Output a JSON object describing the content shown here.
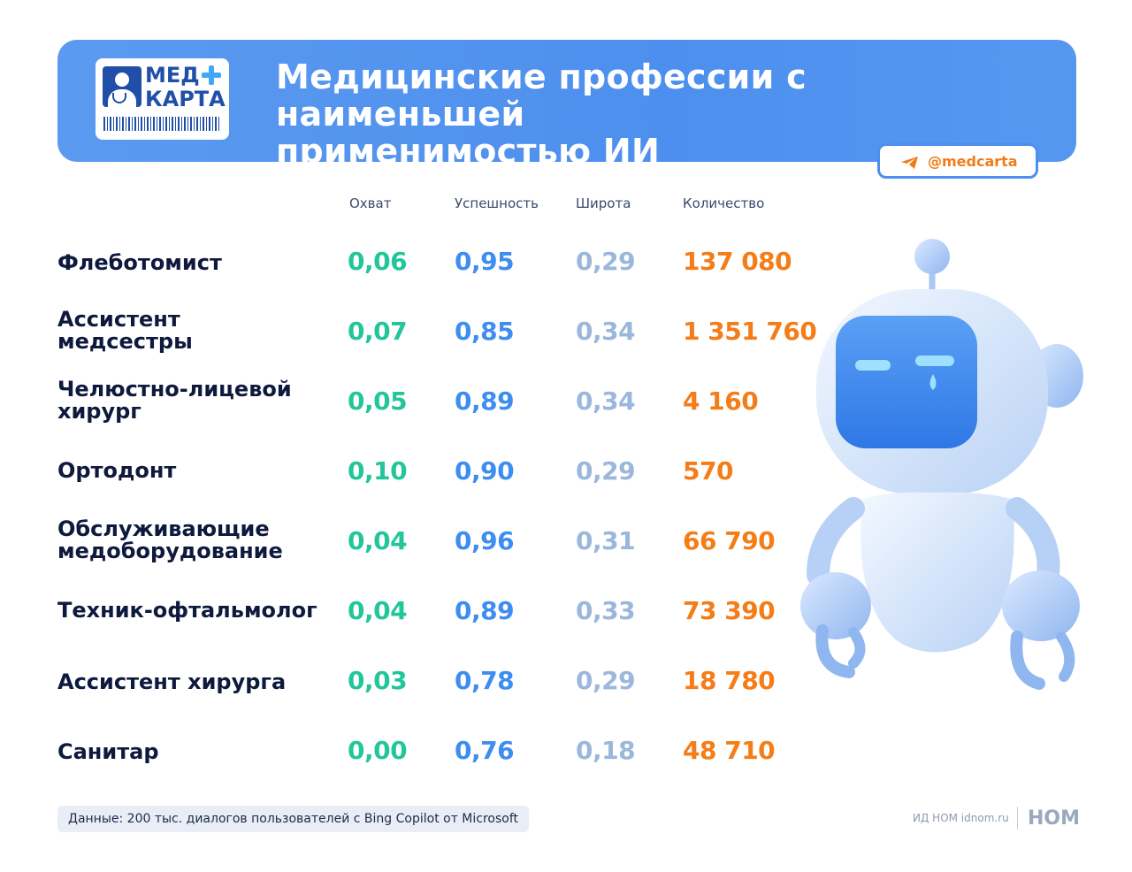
{
  "logo": {
    "line1": "МЕД",
    "line2": "КАРТА"
  },
  "header": {
    "title_line1": "Медицинские профессии с наименьшей",
    "title_line2": "применимостью ИИ"
  },
  "handle": {
    "text": "@medcarta",
    "icon": "telegram-icon"
  },
  "columns": {
    "coverage": "Охват",
    "success": "Успешность",
    "width": "Широта",
    "count": "Количество"
  },
  "rows": [
    {
      "name1": "Флеботомист",
      "name2": "",
      "coverage": "0,06",
      "success": "0,95",
      "width": "0,29",
      "count": "137 080"
    },
    {
      "name1": "Ассистент",
      "name2": "медсестры",
      "coverage": "0,07",
      "success": "0,85",
      "width": "0,34",
      "count": "1 351 760"
    },
    {
      "name1": "Челюстно-лицевой",
      "name2": "хирург",
      "coverage": "0,05",
      "success": "0,89",
      "width": "0,34",
      "count": "4 160"
    },
    {
      "name1": "Ортодонт",
      "name2": "",
      "coverage": "0,10",
      "success": "0,90",
      "width": "0,29",
      "count": "570"
    },
    {
      "name1": "Обслуживающие",
      "name2": "медоборудование",
      "coverage": "0,04",
      "success": "0,96",
      "width": "0,31",
      "count": "66 790"
    },
    {
      "name1": "Техник-офтальмолог",
      "name2": "",
      "coverage": "0,04",
      "success": "0,89",
      "width": "0,33",
      "count": "73 390"
    },
    {
      "name1": "Ассистент хирурга",
      "name2": "",
      "coverage": "0,03",
      "success": "0,78",
      "width": "0,29",
      "count": "18 780"
    },
    {
      "name1": "Санитар",
      "name2": "",
      "coverage": "0,00",
      "success": "0,76",
      "width": "0,18",
      "count": "48 710"
    }
  ],
  "footnote": "Данные: 200 тыс. диалогов пользователей с Bing Copilot от Microsoft",
  "credit": {
    "text": "ИД НОМ idnom.ru",
    "logo": "НОМ"
  },
  "colors": {
    "accent": "#4d8fee",
    "coverage": "#22c69a",
    "success": "#3e8df0",
    "width": "#9bb7dc",
    "count": "#f47d18"
  }
}
